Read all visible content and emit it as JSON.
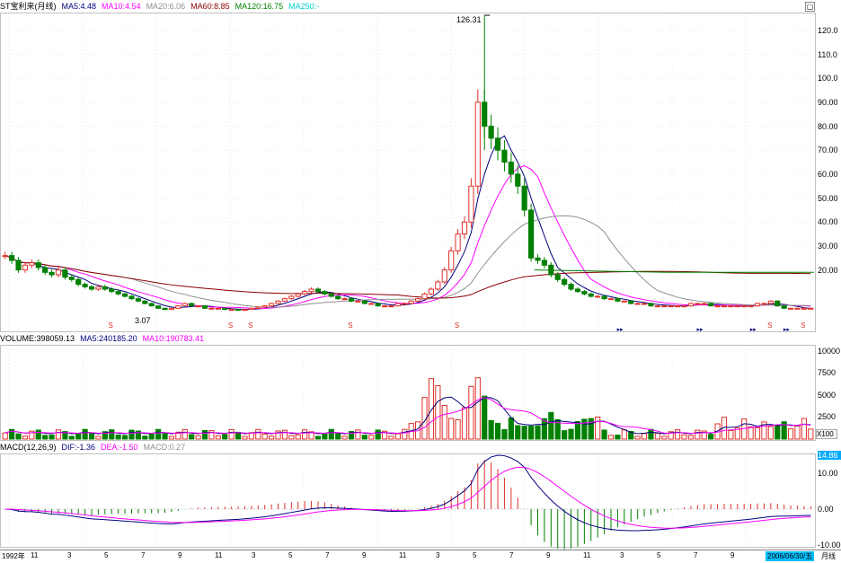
{
  "colors": {
    "up": "#e0302a",
    "down": "#008000",
    "ma5": "#000080",
    "ma10": "#ff00ff",
    "ma20": "#909090",
    "ma60": "#8b0000",
    "ma120": "#008000",
    "ma250": "#00d0d0",
    "accent_blue": "#00aaff"
  },
  "price_panel": {
    "title": "ST宝利来(月线)",
    "ma5": "MA5:4.48",
    "ma10": "MA10:4.54",
    "ma20": "MA20:6.06",
    "ma60": "MA60:8.85",
    "ma120": "MA120:16.75",
    "ma250": "MA250:-",
    "high_label": "126.31",
    "low_label": "3.07",
    "y_ticks": [
      "120.0",
      "110.0",
      "100.0",
      "90.00",
      "80.00",
      "70.00",
      "60.00",
      "50.00",
      "40.00",
      "30.00",
      "20.00"
    ],
    "marker_s": "S",
    "marker_arrow": "▸▸"
  },
  "volume_panel": {
    "volume": "VOLUME:398059.13",
    "ma5": "MA5:240185.20",
    "ma10": "MA10:190783.41",
    "y_ticks": [
      "10000",
      "7500",
      "5000",
      "2500"
    ],
    "unit": "X100"
  },
  "macd_panel": {
    "title": "MACD(12,26,9)",
    "dif": "DIF:-1.36",
    "dea": "DEA:-1.50",
    "macd": "MACD:0.27",
    "y_ticks": [
      "14.86",
      "10.00",
      "0.00",
      "-10.00"
    ]
  },
  "x_axis": {
    "start": "1992年",
    "labels": [
      "11",
      "3",
      "5",
      "7",
      "9",
      "11",
      "3",
      "5",
      "7",
      "9",
      "11",
      "3",
      "5",
      "7",
      "9",
      "11",
      "3",
      "5",
      "7",
      "9"
    ],
    "end_date": "2006/06/30/五",
    "period": "月线"
  },
  "chart_data": {
    "type": "candlestick",
    "title": "ST宝利来(月线)",
    "ylim": [
      0,
      126.31
    ],
    "max_price": 126.31,
    "min_price": 3.07,
    "y_ticks": [
      20,
      30,
      40,
      50,
      60,
      70,
      80,
      90,
      100,
      110,
      120
    ],
    "close_approx": [
      26,
      24,
      20,
      22,
      23,
      21,
      19,
      18,
      20,
      17,
      16,
      14,
      13,
      12,
      13,
      12,
      11,
      10,
      9,
      8,
      7,
      6,
      5,
      4,
      3.5,
      4,
      5,
      6,
      5,
      5,
      4,
      4,
      4,
      3.5,
      3.5,
      3.2,
      3.5,
      4,
      4.5,
      5,
      6,
      7,
      8,
      9,
      10,
      11,
      12,
      11,
      10,
      9,
      8,
      8,
      7,
      7,
      6,
      6,
      5,
      5,
      5,
      6,
      6,
      7,
      8,
      10,
      12,
      15,
      20,
      28,
      35,
      40,
      55,
      90,
      80,
      75,
      70,
      65,
      60,
      55,
      45,
      25,
      24,
      22,
      18,
      16,
      14,
      12,
      11,
      10,
      9,
      9,
      8,
      8,
      7,
      7,
      6,
      6,
      6,
      5,
      5,
      5,
      5,
      5,
      5,
      6,
      6,
      6,
      5,
      5,
      5,
      5,
      5,
      5,
      5,
      6,
      6,
      7,
      5,
      4,
      4,
      4,
      4,
      4
    ],
    "volume_ylim": [
      0,
      10000
    ],
    "macd_ylim": [
      -14.86,
      14.86
    ]
  }
}
